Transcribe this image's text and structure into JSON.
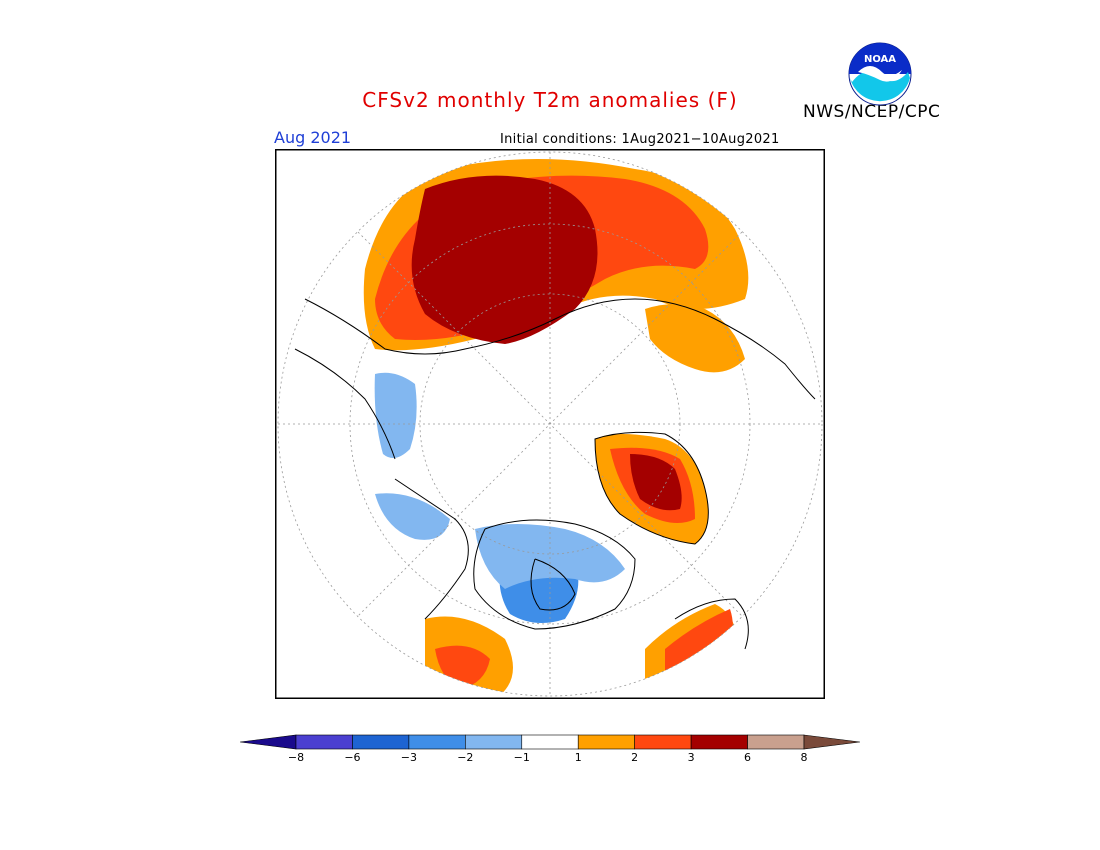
{
  "header": {
    "title": "CFSv2 monthly T2m anomalies (F)",
    "month": "Aug 2021",
    "initial_conditions": "Initial conditions: 1Aug2021−10Aug2021",
    "organization": "NWS/NCEP/CPC",
    "logo_text": "NOAA"
  },
  "colors": {
    "land_outline": "#000000",
    "ocean": "#ffffff",
    "graticule": "#999999",
    "title": "#e00000",
    "month": "#1f3fd6"
  },
  "legend": {
    "bins": [
      {
        "color": "#1a0a8c"
      },
      {
        "color": "#4b3fd0"
      },
      {
        "color": "#1e64d2"
      },
      {
        "color": "#3f8ee8"
      },
      {
        "color": "#82b7f0"
      },
      {
        "color": "#ffffff"
      },
      {
        "color": "#ffa000"
      },
      {
        "color": "#ff4810"
      },
      {
        "color": "#a40000"
      },
      {
        "color": "#c9a08e"
      },
      {
        "color": "#7a4a3a"
      }
    ],
    "tick_labels": [
      "−8",
      "−6",
      "−3",
      "−2",
      "−1",
      "1",
      "2",
      "3",
      "6",
      "8"
    ]
  }
}
